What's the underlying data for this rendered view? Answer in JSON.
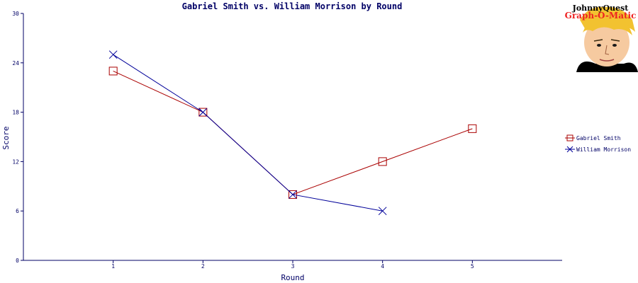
{
  "chart_data": {
    "type": "line",
    "title": "Gabriel Smith vs. William Morrison by Round",
    "xlabel": "Round",
    "ylabel": "Score",
    "x": [
      1,
      2,
      3,
      4,
      5
    ],
    "xlim": [
      0,
      6
    ],
    "ylim": [
      0,
      30
    ],
    "yticks": [
      0,
      6,
      12,
      18,
      24,
      30
    ],
    "xticks": [
      1,
      2,
      3,
      4,
      5
    ],
    "grid": false,
    "legend_position": "right",
    "series": [
      {
        "name": "Gabriel Smith",
        "color": "#aa0000",
        "marker": "square",
        "x": [
          1,
          2,
          3,
          4,
          5
        ],
        "values": [
          23,
          18,
          8,
          12,
          16
        ]
      },
      {
        "name": "William Morrison",
        "color": "#000099",
        "marker": "x",
        "x": [
          1,
          2,
          3,
          4
        ],
        "values": [
          25,
          18,
          8,
          6
        ]
      }
    ]
  },
  "logo": {
    "line1": "JohnnyQuest",
    "line2": "Graph-O-Matic"
  }
}
